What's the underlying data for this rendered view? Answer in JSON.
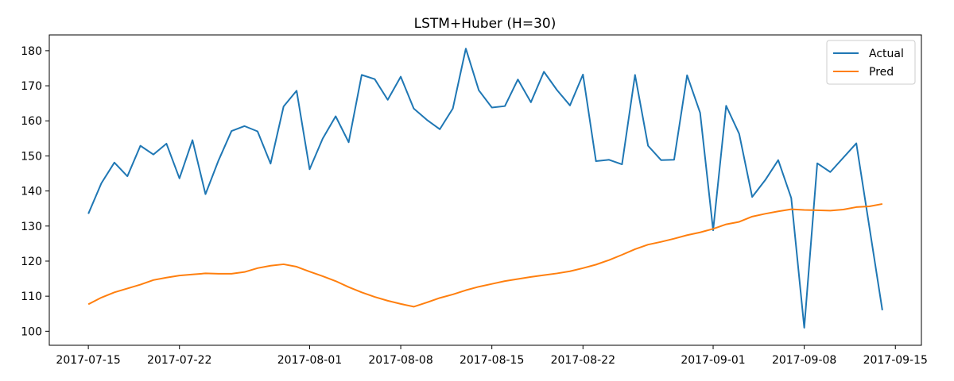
{
  "chart_data": {
    "type": "line",
    "title": "LSTM+Huber (H=30)",
    "xlabel": "",
    "ylabel": "",
    "x_ticks": [
      "2017-07-15",
      "2017-07-22",
      "2017-08-01",
      "2017-08-08",
      "2017-08-15",
      "2017-08-22",
      "2017-09-01",
      "2017-09-08",
      "2017-09-15"
    ],
    "y_ticks": [
      100,
      110,
      120,
      130,
      140,
      150,
      160,
      170,
      180
    ],
    "xlim": [
      "2017-07-12",
      "2017-09-17"
    ],
    "ylim": [
      96,
      184.5
    ],
    "grid": false,
    "legend_position": "top-right",
    "series": [
      {
        "name": "Actual",
        "color": "#1f77b4",
        "points": [
          [
            "2017-07-15",
            133.5
          ],
          [
            "2017-07-16",
            142.2
          ],
          [
            "2017-07-17",
            148.1
          ],
          [
            "2017-07-18",
            144.2
          ],
          [
            "2017-07-19",
            152.9
          ],
          [
            "2017-07-20",
            150.4
          ],
          [
            "2017-07-21",
            153.5
          ],
          [
            "2017-07-22",
            143.6
          ],
          [
            "2017-07-23",
            154.5
          ],
          [
            "2017-07-24",
            139.1
          ],
          [
            "2017-07-25",
            148.7
          ],
          [
            "2017-07-26",
            157.1
          ],
          [
            "2017-07-27",
            158.5
          ],
          [
            "2017-07-28",
            157.0
          ],
          [
            "2017-07-29",
            147.8
          ],
          [
            "2017-07-30",
            164.1
          ],
          [
            "2017-07-31",
            168.6
          ],
          [
            "2017-08-01",
            146.2
          ],
          [
            "2017-08-02",
            154.9
          ],
          [
            "2017-08-03",
            161.3
          ],
          [
            "2017-08-04",
            153.9
          ],
          [
            "2017-08-05",
            173.1
          ],
          [
            "2017-08-06",
            171.9
          ],
          [
            "2017-08-07",
            166.0
          ],
          [
            "2017-08-08",
            172.6
          ],
          [
            "2017-08-09",
            163.5
          ],
          [
            "2017-08-10",
            160.3
          ],
          [
            "2017-08-11",
            157.6
          ],
          [
            "2017-08-12",
            163.5
          ],
          [
            "2017-08-13",
            180.6
          ],
          [
            "2017-08-14",
            168.7
          ],
          [
            "2017-08-15",
            163.8
          ],
          [
            "2017-08-16",
            164.2
          ],
          [
            "2017-08-17",
            171.8
          ],
          [
            "2017-08-18",
            165.3
          ],
          [
            "2017-08-19",
            174.0
          ],
          [
            "2017-08-20",
            168.8
          ],
          [
            "2017-08-21",
            164.4
          ],
          [
            "2017-08-22",
            173.2
          ],
          [
            "2017-08-23",
            148.5
          ],
          [
            "2017-08-24",
            148.9
          ],
          [
            "2017-08-25",
            147.6
          ],
          [
            "2017-08-26",
            173.1
          ],
          [
            "2017-08-27",
            152.9
          ],
          [
            "2017-08-28",
            148.8
          ],
          [
            "2017-08-29",
            148.9
          ],
          [
            "2017-08-30",
            173.0
          ],
          [
            "2017-08-31",
            162.3
          ],
          [
            "2017-09-01",
            128.8
          ],
          [
            "2017-09-02",
            164.3
          ],
          [
            "2017-09-03",
            156.3
          ],
          [
            "2017-09-04",
            138.3
          ],
          [
            "2017-09-05",
            143.1
          ],
          [
            "2017-09-06",
            148.8
          ],
          [
            "2017-09-07",
            138.0
          ],
          [
            "2017-09-08",
            101.0
          ],
          [
            "2017-09-09",
            147.9
          ],
          [
            "2017-09-10",
            145.4
          ],
          [
            "2017-09-12",
            153.6
          ],
          [
            "2017-09-14",
            106.0
          ]
        ]
      },
      {
        "name": "Pred",
        "color": "#ff7f0e",
        "points": [
          [
            "2017-07-15",
            107.7
          ],
          [
            "2017-07-16",
            109.6
          ],
          [
            "2017-07-17",
            111.1
          ],
          [
            "2017-07-18",
            112.2
          ],
          [
            "2017-07-19",
            113.3
          ],
          [
            "2017-07-20",
            114.6
          ],
          [
            "2017-07-21",
            115.3
          ],
          [
            "2017-07-22",
            115.9
          ],
          [
            "2017-07-23",
            116.2
          ],
          [
            "2017-07-24",
            116.5
          ],
          [
            "2017-07-25",
            116.4
          ],
          [
            "2017-07-26",
            116.4
          ],
          [
            "2017-07-27",
            116.9
          ],
          [
            "2017-07-28",
            118.0
          ],
          [
            "2017-07-29",
            118.7
          ],
          [
            "2017-07-30",
            119.1
          ],
          [
            "2017-07-31",
            118.4
          ],
          [
            "2017-08-01",
            117.0
          ],
          [
            "2017-08-02",
            115.7
          ],
          [
            "2017-08-03",
            114.3
          ],
          [
            "2017-08-04",
            112.6
          ],
          [
            "2017-08-05",
            111.1
          ],
          [
            "2017-08-06",
            109.8
          ],
          [
            "2017-08-07",
            108.7
          ],
          [
            "2017-08-08",
            107.8
          ],
          [
            "2017-08-09",
            107.0
          ],
          [
            "2017-08-10",
            108.2
          ],
          [
            "2017-08-11",
            109.5
          ],
          [
            "2017-08-12",
            110.5
          ],
          [
            "2017-08-13",
            111.7
          ],
          [
            "2017-08-14",
            112.7
          ],
          [
            "2017-08-15",
            113.5
          ],
          [
            "2017-08-16",
            114.3
          ],
          [
            "2017-08-17",
            114.9
          ],
          [
            "2017-08-18",
            115.5
          ],
          [
            "2017-08-19",
            116.0
          ],
          [
            "2017-08-20",
            116.5
          ],
          [
            "2017-08-21",
            117.1
          ],
          [
            "2017-08-22",
            118.0
          ],
          [
            "2017-08-23",
            119.0
          ],
          [
            "2017-08-24",
            120.3
          ],
          [
            "2017-08-25",
            121.8
          ],
          [
            "2017-08-26",
            123.4
          ],
          [
            "2017-08-27",
            124.7
          ],
          [
            "2017-08-28",
            125.5
          ],
          [
            "2017-08-29",
            126.4
          ],
          [
            "2017-08-30",
            127.4
          ],
          [
            "2017-08-31",
            128.2
          ],
          [
            "2017-09-01",
            129.2
          ],
          [
            "2017-09-02",
            130.5
          ],
          [
            "2017-09-03",
            131.2
          ],
          [
            "2017-09-04",
            132.7
          ],
          [
            "2017-09-05",
            133.5
          ],
          [
            "2017-09-06",
            134.2
          ],
          [
            "2017-09-07",
            134.8
          ],
          [
            "2017-09-08",
            134.6
          ],
          [
            "2017-09-09",
            134.5
          ],
          [
            "2017-09-10",
            134.4
          ],
          [
            "2017-09-11",
            134.7
          ],
          [
            "2017-09-12",
            135.4
          ],
          [
            "2017-09-13",
            135.6
          ],
          [
            "2017-09-14",
            136.3
          ]
        ]
      }
    ]
  }
}
